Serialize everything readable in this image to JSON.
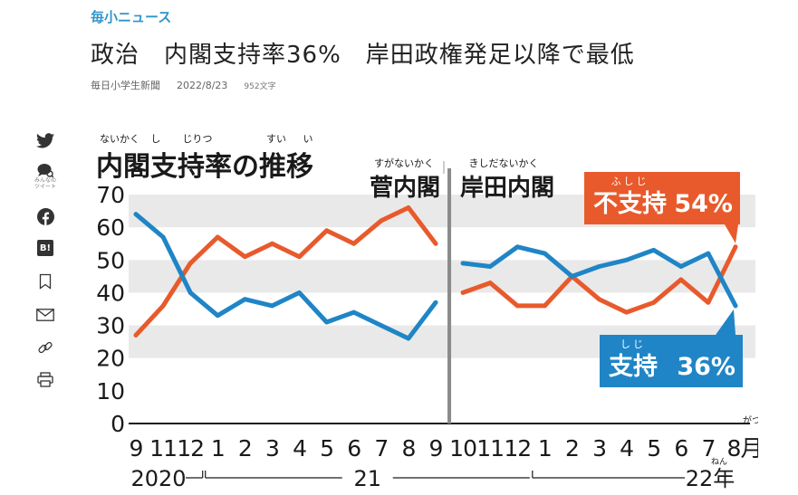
{
  "article": {
    "category": "毎小ニュース",
    "title": "政治　内閣支持率36%　岸田政権発足以降で最低",
    "source": "毎日小学生新聞",
    "date": "2022/8/23",
    "char_count": "952文字"
  },
  "share": {
    "items": [
      {
        "name": "twitter-icon"
      },
      {
        "name": "minna-no-tweet-icon",
        "label": "みんなの\nツイート"
      },
      {
        "name": "facebook-icon"
      },
      {
        "name": "hatena-bookmark-icon",
        "label": "B!"
      },
      {
        "name": "bookmark-icon"
      },
      {
        "name": "mail-icon"
      },
      {
        "name": "link-icon"
      },
      {
        "name": "print-icon"
      }
    ]
  },
  "chart_data": {
    "type": "line",
    "title": "内閣支持率の推移",
    "title_ruby": [
      "ないかく",
      "し",
      "じりつ",
      "すい",
      "い"
    ],
    "ylim": [
      0,
      70
    ],
    "yticks": [
      0,
      10,
      20,
      30,
      40,
      50,
      60,
      70
    ],
    "bands": [
      [
        20,
        30
      ],
      [
        40,
        50
      ],
      [
        60,
        70
      ]
    ],
    "categories": [
      "9",
      "11",
      "12",
      "1",
      "2",
      "3",
      "4",
      "5",
      "6",
      "7",
      "8",
      "9",
      "10",
      "11",
      "12",
      "1",
      "2",
      "3",
      "4",
      "5",
      "6",
      "7",
      "8月"
    ],
    "month_ruby": "がつ",
    "years": [
      {
        "label": "2020",
        "from": 0,
        "to": 2
      },
      {
        "label": "21",
        "from": 3,
        "to": 14
      },
      {
        "label": "22年",
        "ruby": "ねん",
        "from": 15,
        "to": 22
      }
    ],
    "cabinets": [
      {
        "label": "菅内閣",
        "ruby": "すがないかく",
        "from": 0,
        "to": 11
      },
      {
        "label": "岸田内閣",
        "ruby": "きしだないかく",
        "from": 12,
        "to": 22
      }
    ],
    "series": [
      {
        "name": "不支持",
        "name_ruby": "ふしじ",
        "end_label": "54%",
        "color": "#e85a2c",
        "values": [
          27,
          36,
          49,
          57,
          51,
          55,
          51,
          59,
          55,
          62,
          66,
          55,
          40,
          43,
          36,
          36,
          45,
          38,
          34,
          37,
          44,
          37,
          54
        ]
      },
      {
        "name": "支持",
        "name_ruby": "しじ",
        "end_label": "36%",
        "color": "#1f85c6",
        "values": [
          64,
          57,
          40,
          33,
          38,
          36,
          40,
          31,
          34,
          30,
          26,
          37,
          49,
          48,
          54,
          52,
          45,
          48,
          50,
          53,
          48,
          52,
          36
        ]
      }
    ]
  }
}
